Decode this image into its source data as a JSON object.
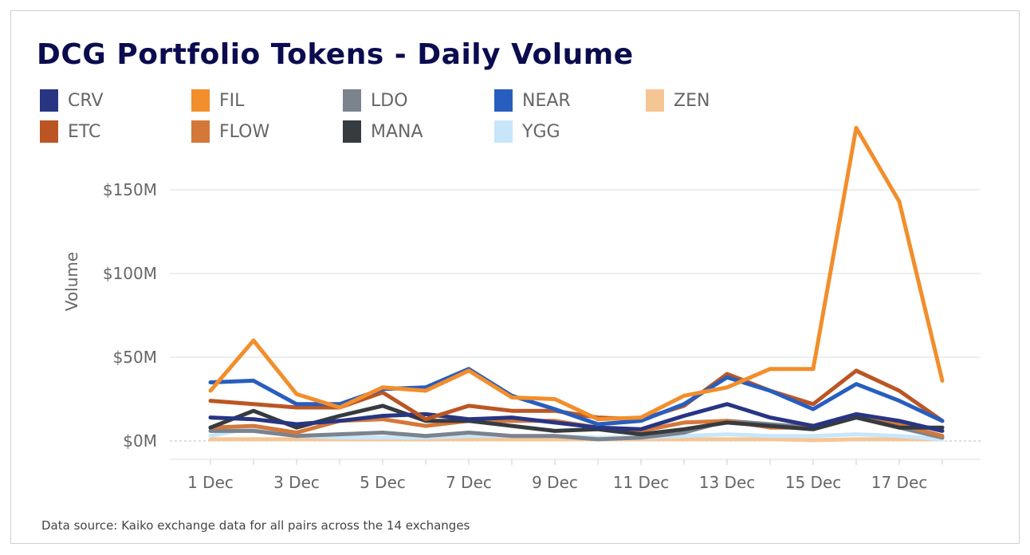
{
  "chart_data": {
    "type": "line",
    "title": "DCG Portfolio Tokens - Daily Volume",
    "ylabel": "Volume",
    "xlabel": "",
    "x": [
      "1 Dec",
      "2 Dec",
      "3 Dec",
      "4 Dec",
      "5 Dec",
      "6 Dec",
      "7 Dec",
      "8 Dec",
      "9 Dec",
      "10 Dec",
      "11 Dec",
      "12 Dec",
      "13 Dec",
      "14 Dec",
      "15 Dec",
      "16 Dec",
      "17 Dec",
      "18 Dec"
    ],
    "x_tick_labels": [
      "1 Dec",
      "3 Dec",
      "5 Dec",
      "7 Dec",
      "9 Dec",
      "11 Dec",
      "13 Dec",
      "15 Dec",
      "17 Dec"
    ],
    "y_ticks": [
      0,
      50,
      100,
      150
    ],
    "y_tick_labels": [
      "$0M",
      "$50M",
      "$100M",
      "$150M"
    ],
    "ylim": [
      0,
      200
    ],
    "y_unit": "$M",
    "grid": true,
    "legend_position": "top",
    "series": [
      {
        "name": "CRV",
        "color": "#283583",
        "values": [
          14,
          13,
          10,
          12,
          15,
          16,
          13,
          14,
          11,
          8,
          7,
          15,
          22,
          14,
          9,
          16,
          12,
          6
        ]
      },
      {
        "name": "ETC",
        "color": "#bb5624",
        "values": [
          24,
          22,
          20,
          20,
          29,
          13,
          21,
          18,
          18,
          14,
          13,
          21,
          40,
          30,
          22,
          42,
          30,
          12
        ]
      },
      {
        "name": "FIL",
        "color": "#f28e2b",
        "values": [
          30,
          60,
          28,
          20,
          32,
          30,
          42,
          26,
          25,
          13,
          14,
          27,
          32,
          43,
          43,
          187,
          143,
          36
        ]
      },
      {
        "name": "FLOW",
        "color": "#d4783a",
        "values": [
          8,
          9,
          5,
          12,
          13,
          9,
          12,
          12,
          12,
          8,
          6,
          11,
          12,
          8,
          8,
          15,
          10,
          3
        ]
      },
      {
        "name": "LDO",
        "color": "#7b838e",
        "values": [
          6,
          6,
          3,
          4,
          5,
          3,
          5,
          3,
          3,
          1,
          2,
          5,
          12,
          10,
          8,
          14,
          8,
          2
        ]
      },
      {
        "name": "MANA",
        "color": "#363b40",
        "values": [
          8,
          18,
          8,
          15,
          21,
          12,
          12,
          9,
          6,
          7,
          4,
          7,
          11,
          9,
          7,
          14,
          8,
          8
        ]
      },
      {
        "name": "NEAR",
        "color": "#285ebe",
        "values": [
          35,
          36,
          22,
          22,
          31,
          32,
          43,
          27,
          19,
          10,
          12,
          22,
          38,
          30,
          19,
          34,
          24,
          12
        ]
      },
      {
        "name": "YGG",
        "color": "#c8e6fa",
        "values": [
          3,
          8,
          3,
          2,
          2,
          2,
          3,
          3,
          3,
          2,
          2,
          3,
          4,
          3,
          3,
          4,
          3,
          1
        ]
      },
      {
        "name": "ZEN",
        "color": "#f6c594",
        "values": [
          1,
          1,
          1,
          1,
          1,
          1,
          1,
          1,
          1,
          1,
          1,
          1,
          1,
          1,
          0.5,
          1,
          1,
          1
        ]
      }
    ]
  },
  "footer": "Data source: Kaiko exchange data for all pairs across the 14 exchanges"
}
